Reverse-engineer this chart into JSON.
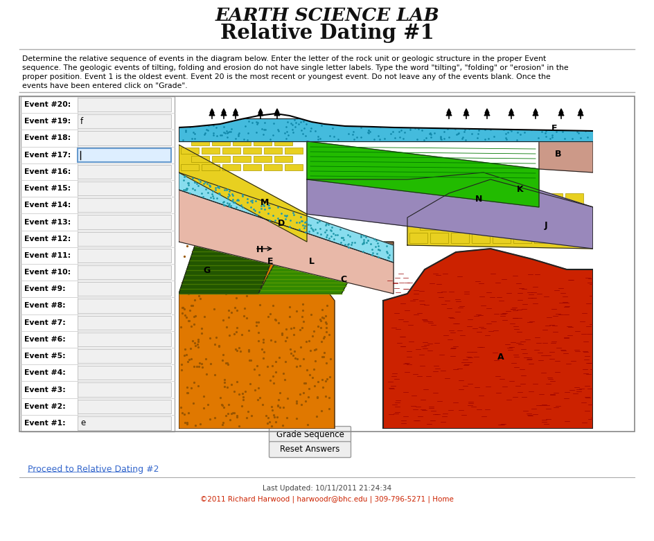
{
  "title_top": "EARTH SCIENCE LAB",
  "title_main": "Relative Dating #1",
  "desc_lines": [
    "Determine the relative sequence of events in the diagram below. Enter the letter of the rock unit or geologic structure in the proper Event",
    "sequence. The geologic events of tilting, folding and erosion do not have single letter labels. Type the word \"tilting\", \"folding\" or \"erosion\" in the",
    "proper position. Event 1 is the oldest event. Event 20 is the most recent or youngest event. Do not leave any of the events blank. Once the",
    "events have been entered click on \"Grade\"."
  ],
  "events": [
    {
      "label": "Event #20:",
      "value": "",
      "active": false
    },
    {
      "label": "Event #19:",
      "value": "f",
      "active": false
    },
    {
      "label": "Event #18:",
      "value": "",
      "active": false
    },
    {
      "label": "Event #17:",
      "value": "",
      "active": true
    },
    {
      "label": "Event #16:",
      "value": "",
      "active": false
    },
    {
      "label": "Event #15:",
      "value": "",
      "active": false
    },
    {
      "label": "Event #14:",
      "value": "",
      "active": false
    },
    {
      "label": "Event #13:",
      "value": "",
      "active": false
    },
    {
      "label": "Event #12:",
      "value": "",
      "active": false
    },
    {
      "label": "Event #11:",
      "value": "",
      "active": false
    },
    {
      "label": "Event #10:",
      "value": "",
      "active": false
    },
    {
      "label": "Event #9:",
      "value": "",
      "active": false
    },
    {
      "label": "Event #8:",
      "value": "",
      "active": false
    },
    {
      "label": "Event #7:",
      "value": "",
      "active": false
    },
    {
      "label": "Event #6:",
      "value": "",
      "active": false
    },
    {
      "label": "Event #5:",
      "value": "",
      "active": false
    },
    {
      "label": "Event #4:",
      "value": "",
      "active": false
    },
    {
      "label": "Event #3:",
      "value": "",
      "active": false
    },
    {
      "label": "Event #2:",
      "value": "",
      "active": false
    },
    {
      "label": "Event #1:",
      "value": "e",
      "active": false
    }
  ],
  "button1": "Grade Sequence",
  "button2": "Reset Answers",
  "proceed_text": "Proceed to Relative Dating #2",
  "footer1": "Last Updated: 10/11/2011 21:24:34",
  "footer2": "©2011 Richard Harwood | harwoodr@bhc.edu | 309-796-5271 | Home",
  "colors": {
    "red_intrusion": "#cc2200",
    "orange_sand": "#e07800",
    "yellow_lime": "#e8d020",
    "pink_silt": "#e8b8a8",
    "light_blue": "#88ddee",
    "purple": "#9988bb",
    "green_bright": "#22bb00",
    "brown": "#8b6040",
    "green_dark": "#225500",
    "green_mid": "#338800",
    "mauve": "#cc9988",
    "cyan_top": "#44bbdd",
    "bg": "#ffffff"
  }
}
